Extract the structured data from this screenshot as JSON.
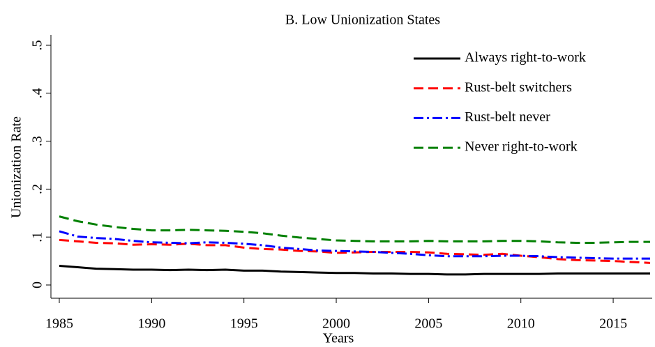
{
  "chart_data": {
    "type": "line",
    "title": "B. Low Unionization States",
    "x_label": "Years",
    "y_label": "Unionization Rate",
    "x": [
      1985,
      1986,
      1987,
      1988,
      1989,
      1990,
      1991,
      1992,
      1993,
      1994,
      1995,
      1996,
      1997,
      1998,
      1999,
      2000,
      2001,
      2002,
      2003,
      2004,
      2005,
      2006,
      2007,
      2008,
      2009,
      2010,
      2011,
      2012,
      2013,
      2014,
      2015,
      2016,
      2017
    ],
    "series": [
      {
        "name": "Always right-to-work",
        "color": "#000000",
        "values": [
          0.04,
          0.037,
          0.034,
          0.033,
          0.032,
          0.032,
          0.031,
          0.032,
          0.031,
          0.032,
          0.03,
          0.03,
          0.028,
          0.027,
          0.026,
          0.025,
          0.025,
          0.024,
          0.024,
          0.023,
          0.023,
          0.022,
          0.022,
          0.023,
          0.023,
          0.023,
          0.023,
          0.024,
          0.024,
          0.024,
          0.024,
          0.024,
          0.024
        ]
      },
      {
        "name": "Rust-belt switchers",
        "color": "#ff0000",
        "values": [
          0.094,
          0.091,
          0.088,
          0.087,
          0.084,
          0.085,
          0.084,
          0.086,
          0.083,
          0.083,
          0.078,
          0.075,
          0.074,
          0.071,
          0.07,
          0.067,
          0.068,
          0.069,
          0.069,
          0.069,
          0.068,
          0.065,
          0.064,
          0.063,
          0.065,
          0.061,
          0.058,
          0.054,
          0.052,
          0.051,
          0.05,
          0.048,
          0.046
        ]
      },
      {
        "name": "Rust-belt never",
        "color": "#0000ff",
        "values": [
          0.112,
          0.101,
          0.098,
          0.096,
          0.092,
          0.089,
          0.088,
          0.087,
          0.089,
          0.088,
          0.086,
          0.083,
          0.078,
          0.075,
          0.072,
          0.071,
          0.07,
          0.069,
          0.067,
          0.065,
          0.062,
          0.06,
          0.06,
          0.06,
          0.061,
          0.061,
          0.06,
          0.058,
          0.057,
          0.056,
          0.055,
          0.055,
          0.055
        ]
      },
      {
        "name": "Never right-to-work",
        "color": "#008000",
        "values": [
          0.143,
          0.133,
          0.126,
          0.121,
          0.117,
          0.114,
          0.114,
          0.115,
          0.114,
          0.113,
          0.111,
          0.108,
          0.103,
          0.099,
          0.096,
          0.093,
          0.092,
          0.091,
          0.091,
          0.091,
          0.092,
          0.091,
          0.091,
          0.091,
          0.092,
          0.092,
          0.091,
          0.089,
          0.088,
          0.088,
          0.089,
          0.09,
          0.09
        ]
      }
    ],
    "xlim": [
      1985,
      2017
    ],
    "xticks": [
      1985,
      1990,
      1995,
      2000,
      2005,
      2010,
      2015
    ],
    "ylim": [
      0,
      0.5
    ],
    "yticks": [
      0,
      {
        "value": 0.1,
        "label": ".1"
      },
      {
        "value": 0.2,
        "label": ".2"
      },
      {
        "value": 0.3,
        "label": ".3"
      },
      {
        "value": 0.4,
        "label": ".4"
      },
      {
        "value": 0.5,
        "label": ".5"
      }
    ],
    "legend": "top-right"
  }
}
